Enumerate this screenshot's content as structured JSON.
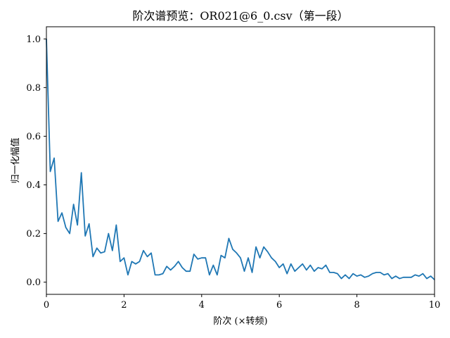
{
  "chart_data": {
    "type": "line",
    "title": "阶次谱预览：OR021@6_0.csv（第一段）",
    "xlabel": "阶次 (×转频)",
    "ylabel": "归一化幅值",
    "xlim": [
      0,
      10
    ],
    "ylim": [
      -0.05,
      1.05
    ],
    "xticks": [
      0,
      2,
      4,
      6,
      8,
      10
    ],
    "yticks": [
      0.0,
      0.2,
      0.4,
      0.6,
      0.8,
      1.0
    ],
    "xtick_labels": [
      "0",
      "2",
      "4",
      "6",
      "8",
      "10"
    ],
    "ytick_labels": [
      "0.0",
      "0.2",
      "0.4",
      "0.6",
      "0.8",
      "1.0"
    ],
    "grid": false,
    "series": [
      {
        "color": "#1f77b4",
        "x": [
          0.0,
          0.1,
          0.2,
          0.3,
          0.4,
          0.5,
          0.6,
          0.7,
          0.8,
          0.9,
          1.0,
          1.1,
          1.2,
          1.3,
          1.4,
          1.5,
          1.6,
          1.7,
          1.8,
          1.9,
          2.0,
          2.1,
          2.2,
          2.3,
          2.4,
          2.5,
          2.6,
          2.7,
          2.8,
          2.9,
          3.0,
          3.1,
          3.2,
          3.3,
          3.4,
          3.5,
          3.6,
          3.7,
          3.8,
          3.9,
          4.0,
          4.1,
          4.2,
          4.3,
          4.4,
          4.5,
          4.6,
          4.7,
          4.8,
          4.9,
          5.0,
          5.1,
          5.2,
          5.3,
          5.4,
          5.5,
          5.6,
          5.7,
          5.8,
          5.9,
          6.0,
          6.1,
          6.2,
          6.3,
          6.4,
          6.5,
          6.6,
          6.7,
          6.8,
          6.9,
          7.0,
          7.1,
          7.2,
          7.3,
          7.4,
          7.5,
          7.6,
          7.7,
          7.8,
          7.9,
          8.0,
          8.1,
          8.2,
          8.3,
          8.4,
          8.5,
          8.6,
          8.7,
          8.8,
          8.9,
          9.0,
          9.1,
          9.2,
          9.3,
          9.4,
          9.5,
          9.6,
          9.7,
          9.8,
          9.9,
          10.0
        ],
        "y": [
          1.0,
          0.455,
          0.51,
          0.25,
          0.285,
          0.225,
          0.2,
          0.32,
          0.235,
          0.45,
          0.19,
          0.24,
          0.105,
          0.14,
          0.12,
          0.125,
          0.2,
          0.13,
          0.235,
          0.085,
          0.1,
          0.03,
          0.085,
          0.075,
          0.085,
          0.13,
          0.105,
          0.12,
          0.03,
          0.03,
          0.035,
          0.065,
          0.05,
          0.065,
          0.085,
          0.06,
          0.045,
          0.045,
          0.115,
          0.095,
          0.1,
          0.1,
          0.03,
          0.07,
          0.03,
          0.11,
          0.1,
          0.18,
          0.135,
          0.12,
          0.1,
          0.045,
          0.1,
          0.04,
          0.145,
          0.1,
          0.145,
          0.125,
          0.1,
          0.085,
          0.06,
          0.075,
          0.035,
          0.075,
          0.045,
          0.06,
          0.075,
          0.05,
          0.07,
          0.045,
          0.06,
          0.055,
          0.07,
          0.04,
          0.04,
          0.035,
          0.015,
          0.03,
          0.015,
          0.035,
          0.025,
          0.03,
          0.02,
          0.025,
          0.035,
          0.04,
          0.04,
          0.03,
          0.035,
          0.015,
          0.025,
          0.015,
          0.02,
          0.02,
          0.02,
          0.03,
          0.025,
          0.035,
          0.015,
          0.025,
          0.01
        ]
      }
    ]
  }
}
